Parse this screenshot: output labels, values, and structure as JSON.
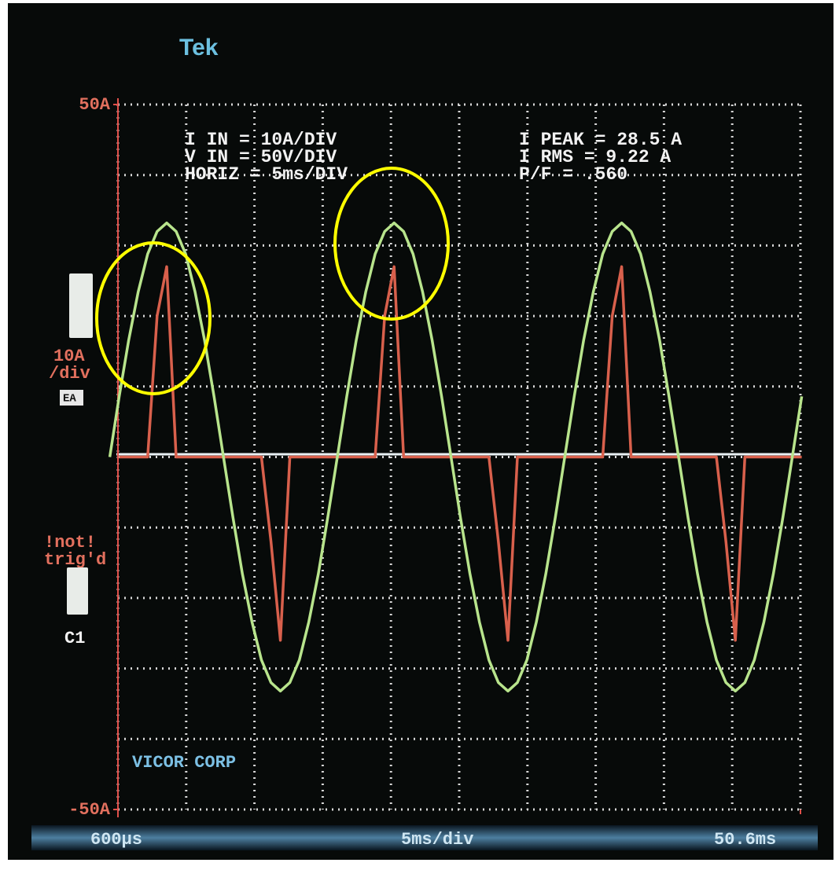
{
  "chart_data": {
    "type": "line",
    "brand": "Tek",
    "readouts_left": [
      "I IN = 10A/DIV",
      "V IN = 50V/DIV",
      "HORIZ = 5ms/DIV"
    ],
    "readouts_right": [
      "I PEAK = 28.5 A",
      "I RMS = 9.22 A",
      "P/F = .560"
    ],
    "footer": "VICOR CORP",
    "side_labels": {
      "scale": "10A",
      "per_div": "/div",
      "coupling": "EA",
      "trigger_1": "!not!",
      "trigger_2": "trig'd",
      "channel": "C1"
    },
    "x_label": "5ms/div",
    "xlim": [
      0.6,
      50.6
    ],
    "xticks": [
      {
        "value": 0.6,
        "label": "600µs"
      },
      {
        "value": 50.6,
        "label": "50.6ms"
      }
    ],
    "ylim": [
      -50,
      50
    ],
    "yticks": [
      {
        "value": 50,
        "label": "50A"
      },
      {
        "value": -50,
        "label": "-50A"
      }
    ],
    "y2lim": [
      -250,
      250
    ],
    "grid": true,
    "x": [
      0,
      0.69,
      1.39,
      2.08,
      2.78,
      3.47,
      4.17,
      4.86,
      5.56,
      6.25,
      6.94,
      7.64,
      8.33,
      9.03,
      9.72,
      10.42,
      11.11,
      11.81,
      12.5,
      13.19,
      13.89,
      14.58,
      15.28,
      15.97,
      16.67,
      17.36,
      18.06,
      18.75,
      19.44,
      20.14,
      20.83,
      21.53,
      22.22,
      22.92,
      23.61,
      24.31,
      25,
      25.69,
      26.39,
      27.08,
      27.78,
      28.47,
      29.17,
      29.86,
      30.56,
      31.25,
      31.94,
      32.64,
      33.33,
      34.03,
      34.72,
      35.42,
      36.11,
      36.81,
      37.5,
      38.19,
      38.89,
      39.58,
      40.28,
      40.97,
      41.67,
      42.36,
      43.06,
      43.75,
      44.44,
      45.14,
      45.83,
      46.53,
      47.22,
      47.92,
      48.61,
      49.31,
      50,
      50.69
    ],
    "series": [
      {
        "color": "#d8604c",
        "values": [
          null,
          0,
          0,
          0,
          0,
          20,
          27,
          0,
          0,
          0,
          0,
          0,
          0,
          0,
          0,
          0,
          0,
          -12,
          -26,
          0,
          0,
          0,
          0,
          0,
          0,
          0,
          0,
          0,
          0,
          20,
          27,
          0,
          0,
          0,
          0,
          0,
          0,
          0,
          0,
          0,
          0,
          -12,
          -26,
          0,
          0,
          0,
          0,
          0,
          0,
          0,
          0,
          0,
          0,
          20,
          27,
          0,
          0,
          0,
          0,
          0,
          0,
          0,
          0,
          0,
          0,
          -12,
          -26,
          0,
          0,
          0,
          0,
          0,
          0,
          0
        ]
      },
      {
        "color": "#b8e48c",
        "axis": "y2",
        "values": [
          0,
          43,
          83,
          117,
          144,
          160,
          166,
          160,
          144,
          117,
          83,
          43,
          0,
          -43,
          -83,
          -117,
          -144,
          -160,
          -166,
          -160,
          -144,
          -117,
          -83,
          -43,
          0,
          43,
          83,
          117,
          144,
          160,
          166,
          160,
          144,
          117,
          83,
          43,
          0,
          -43,
          -83,
          -117,
          -144,
          -160,
          -166,
          -160,
          -144,
          -117,
          -83,
          -43,
          0,
          43,
          83,
          117,
          144,
          160,
          166,
          160,
          144,
          117,
          83,
          43,
          0,
          -43,
          -83,
          -117,
          -144,
          -160,
          -166,
          -160,
          -144,
          -117,
          -83,
          -43,
          0,
          43
        ]
      }
    ]
  }
}
